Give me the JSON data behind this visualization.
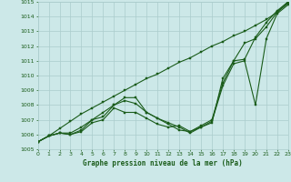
{
  "title": "Graphe pression niveau de la mer (hPa)",
  "bg_color": "#cce8e8",
  "grid_color": "#aacccc",
  "line_color": "#1a5c1a",
  "xlim": [
    0,
    23
  ],
  "ylim": [
    1005,
    1015
  ],
  "xticks": [
    0,
    1,
    2,
    3,
    4,
    5,
    6,
    7,
    8,
    9,
    10,
    11,
    12,
    13,
    14,
    15,
    16,
    17,
    18,
    19,
    20,
    21,
    22,
    23
  ],
  "yticks": [
    1005,
    1006,
    1007,
    1008,
    1009,
    1010,
    1011,
    1012,
    1013,
    1014,
    1015
  ],
  "series": [
    {
      "x": [
        0,
        1,
        2,
        3,
        4,
        5,
        6,
        7,
        8,
        9,
        10,
        11,
        12,
        13,
        14,
        15,
        16,
        17,
        18,
        19,
        20,
        21,
        22,
        23
      ],
      "y": [
        1005.5,
        1005.9,
        1006.4,
        1006.9,
        1007.4,
        1007.8,
        1008.2,
        1008.6,
        1009.0,
        1009.4,
        1009.8,
        1010.1,
        1010.5,
        1010.9,
        1011.2,
        1011.6,
        1012.0,
        1012.3,
        1012.7,
        1013.0,
        1013.4,
        1013.8,
        1014.3,
        1015.0
      ]
    },
    {
      "x": [
        0,
        1,
        2,
        3,
        4,
        5,
        6,
        7,
        8,
        9,
        10,
        11,
        12,
        13,
        14,
        15,
        16,
        17,
        18,
        19,
        20,
        21,
        22,
        23
      ],
      "y": [
        1005.5,
        1005.9,
        1006.1,
        1006.1,
        1006.5,
        1007.0,
        1007.2,
        1008.0,
        1008.3,
        1008.1,
        1007.5,
        1007.1,
        1006.7,
        1006.3,
        1006.2,
        1006.6,
        1007.0,
        1009.5,
        1011.0,
        1012.2,
        1012.5,
        1013.3,
        1014.3,
        1014.9
      ]
    },
    {
      "x": [
        0,
        1,
        2,
        3,
        4,
        5,
        6,
        7,
        8,
        9,
        10,
        11,
        12,
        13,
        14,
        15,
        16,
        17,
        18,
        19,
        20,
        21,
        22,
        23
      ],
      "y": [
        1005.5,
        1005.9,
        1006.1,
        1006.0,
        1006.3,
        1007.0,
        1007.5,
        1008.0,
        1008.5,
        1008.5,
        1007.5,
        1007.1,
        1006.8,
        1006.5,
        1006.1,
        1006.5,
        1006.8,
        1009.8,
        1011.0,
        1011.1,
        1012.6,
        1013.6,
        1014.4,
        1015.0
      ]
    },
    {
      "x": [
        0,
        1,
        2,
        3,
        4,
        5,
        6,
        7,
        8,
        9,
        10,
        11,
        12,
        13,
        14,
        15,
        16,
        17,
        18,
        19,
        20,
        21,
        22,
        23
      ],
      "y": [
        1005.5,
        1005.9,
        1006.1,
        1006.0,
        1006.2,
        1006.8,
        1007.0,
        1007.8,
        1007.5,
        1007.5,
        1007.1,
        1006.7,
        1006.5,
        1006.6,
        1006.2,
        1006.5,
        1006.9,
        1009.3,
        1010.8,
        1011.0,
        1008.0,
        1012.5,
        1014.2,
        1014.8
      ]
    }
  ]
}
